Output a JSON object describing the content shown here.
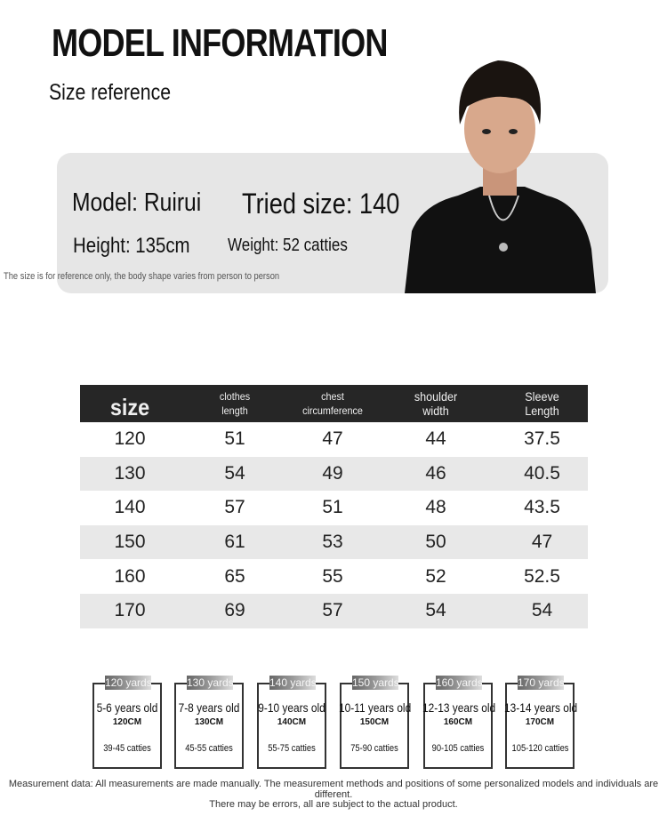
{
  "header": {
    "title": "MODEL INFORMATION",
    "subtitle": "Size reference"
  },
  "model": {
    "name": "Model: Ruirui",
    "tried_size": "Tried size: 140",
    "height": "Height: 135cm",
    "weight": "Weight: 52 catties",
    "note": "The size is for reference only, the body shape varies from person to person"
  },
  "table": {
    "headers": [
      [
        "size"
      ],
      [
        "clothes",
        "length"
      ],
      [
        "chest",
        "circumference"
      ],
      [
        "shoulder",
        "width"
      ],
      [
        "Sleeve",
        "Length"
      ]
    ],
    "rows": [
      [
        "120",
        "51",
        "47",
        "44",
        "37.5"
      ],
      [
        "130",
        "54",
        "49",
        "46",
        "40.5"
      ],
      [
        "140",
        "57",
        "51",
        "48",
        "43.5"
      ],
      [
        "150",
        "61",
        "53",
        "50",
        "47"
      ],
      [
        "160",
        "65",
        "55",
        "52",
        "52.5"
      ],
      [
        "170",
        "69",
        "57",
        "54",
        "54"
      ]
    ]
  },
  "cards": [
    {
      "tag": "120 yards",
      "age": "5-6 years old",
      "cm": "120CM",
      "weight": "39-45 catties"
    },
    {
      "tag": "130 yards",
      "age": "7-8 years old",
      "cm": "130CM",
      "weight": "45-55 catties"
    },
    {
      "tag": "140 yards",
      "age": "9-10 years old",
      "cm": "140CM",
      "weight": "55-75 catties"
    },
    {
      "tag": "150 yards",
      "age": "10-11 years old",
      "cm": "150CM",
      "weight": "75-90 catties"
    },
    {
      "tag": "160 yards",
      "age": "12-13 years old",
      "cm": "160CM",
      "weight": "90-105 catties"
    },
    {
      "tag": "170 yards",
      "age": "13-14 years old",
      "cm": "170CM",
      "weight": "105-120 catties"
    }
  ],
  "footer": {
    "line1": "Measurement data: All measurements are made manually. The measurement methods and positions of some personalized models and individuals are different.",
    "line2": "There may be errors, all are subject to the actual product."
  }
}
